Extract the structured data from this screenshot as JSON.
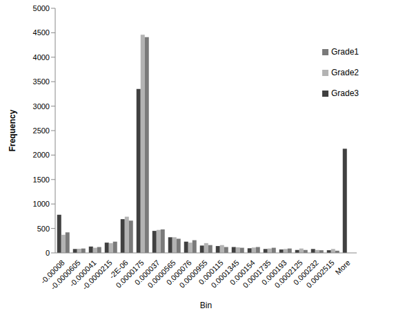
{
  "chart_data": {
    "type": "bar",
    "x_label": "Bin",
    "y_label": "Frequency",
    "categories": [
      "-0.00008",
      "-0.0000605",
      "-0.000041",
      "-0.0000215",
      "-2E-06",
      "0.0000175",
      "0.000037",
      "0.0000565",
      "0.000076",
      "0.0000955",
      "0.000115",
      "0.0001345",
      "0.000154",
      "0.0001735",
      "0.000193",
      "0.0002125",
      "0.000232",
      "0.0002515",
      "More"
    ],
    "series": [
      {
        "name": "Grade3",
        "color": "#404040",
        "values": [
          780,
          80,
          130,
          210,
          690,
          3350,
          450,
          320,
          230,
          150,
          140,
          120,
          95,
          80,
          70,
          60,
          80,
          55,
          2130
        ]
      },
      {
        "name": "Grade2",
        "color": "#b3b3b3",
        "values": [
          370,
          85,
          105,
          200,
          740,
          4460,
          470,
          320,
          210,
          200,
          160,
          115,
          110,
          90,
          80,
          90,
          60,
          80,
          0
        ]
      },
      {
        "name": "Grade1",
        "color": "#7a7a7a",
        "values": [
          420,
          90,
          120,
          230,
          660,
          4410,
          480,
          290,
          260,
          160,
          120,
          105,
          120,
          105,
          90,
          60,
          55,
          45,
          0
        ]
      }
    ],
    "ylim": [
      0,
      5000
    ],
    "yticks": [
      0,
      500,
      1000,
      1500,
      2000,
      2500,
      3000,
      3500,
      4000,
      4500,
      5000
    ],
    "grid": false,
    "legend": "upper right"
  }
}
